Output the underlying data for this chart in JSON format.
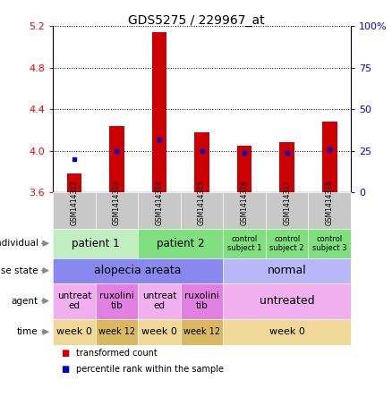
{
  "title": "GDS5275 / 229967_at",
  "samples": [
    "GSM1414312",
    "GSM1414313",
    "GSM1414314",
    "GSM1414315",
    "GSM1414316",
    "GSM1414317",
    "GSM1414318"
  ],
  "bar_values": [
    3.78,
    4.24,
    5.14,
    4.18,
    4.05,
    4.08,
    4.28
  ],
  "bar_base": 3.6,
  "percentile_values": [
    20,
    25,
    32,
    25,
    24,
    24,
    26
  ],
  "ylim": [
    3.6,
    5.2
  ],
  "yticks_left": [
    3.6,
    4.0,
    4.4,
    4.8,
    5.2
  ],
  "yticks_right": [
    0,
    25,
    50,
    75,
    100
  ],
  "bar_color": "#cc0000",
  "dot_color": "#0000cc",
  "plot_bg": "#ffffff",
  "sample_label_bg": "#c8c8c8",
  "row_labels": [
    "individual",
    "disease state",
    "agent",
    "time"
  ],
  "individual_data": [
    {
      "label": "patient 1",
      "span": [
        0,
        1
      ],
      "color": "#c0eec0",
      "fontsize": 8.5
    },
    {
      "label": "patient 2",
      "span": [
        2,
        3
      ],
      "color": "#80e080",
      "fontsize": 8.5
    },
    {
      "label": "control\nsubject 1",
      "span": [
        4,
        4
      ],
      "color": "#80e080",
      "fontsize": 6.0
    },
    {
      "label": "control\nsubject 2",
      "span": [
        5,
        5
      ],
      "color": "#80e080",
      "fontsize": 6.0
    },
    {
      "label": "control\nsubject 3",
      "span": [
        6,
        6
      ],
      "color": "#80e080",
      "fontsize": 6.0
    }
  ],
  "disease_data": [
    {
      "label": "alopecia areata",
      "span": [
        0,
        3
      ],
      "color": "#8888ee",
      "fontsize": 9
    },
    {
      "label": "normal",
      "span": [
        4,
        6
      ],
      "color": "#b8b8f8",
      "fontsize": 9
    }
  ],
  "agent_data": [
    {
      "label": "untreat\ned",
      "span": [
        0,
        0
      ],
      "color": "#f0b0f0",
      "fontsize": 7.5
    },
    {
      "label": "ruxolini\ntib",
      "span": [
        1,
        1
      ],
      "color": "#e080e0",
      "fontsize": 7.5
    },
    {
      "label": "untreat\ned",
      "span": [
        2,
        2
      ],
      "color": "#f0b0f0",
      "fontsize": 7.5
    },
    {
      "label": "ruxolini\ntib",
      "span": [
        3,
        3
      ],
      "color": "#e080e0",
      "fontsize": 7.5
    },
    {
      "label": "untreated",
      "span": [
        4,
        6
      ],
      "color": "#f0b0f0",
      "fontsize": 9
    }
  ],
  "time_data": [
    {
      "label": "week 0",
      "span": [
        0,
        0
      ],
      "color": "#f0d898",
      "fontsize": 8
    },
    {
      "label": "week 12",
      "span": [
        1,
        1
      ],
      "color": "#d8b860",
      "fontsize": 7
    },
    {
      "label": "week 0",
      "span": [
        2,
        2
      ],
      "color": "#f0d898",
      "fontsize": 8
    },
    {
      "label": "week 12",
      "span": [
        3,
        3
      ],
      "color": "#d8b860",
      "fontsize": 7
    },
    {
      "label": "week 0",
      "span": [
        4,
        6
      ],
      "color": "#f0d898",
      "fontsize": 8
    }
  ]
}
